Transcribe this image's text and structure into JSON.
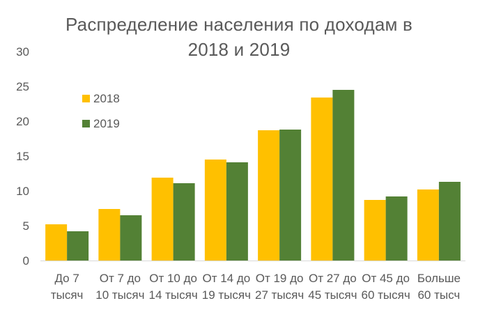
{
  "chart_data": {
    "type": "bar",
    "title": [
      "Распределение населения по доходам в",
      "2018 и 2019"
    ],
    "categories": [
      [
        "До 7",
        "тысяч"
      ],
      [
        "От 7 до",
        "10 тысяч"
      ],
      [
        "От 10 до",
        "14 тысяч"
      ],
      [
        "От 14 до",
        "19 тысяч"
      ],
      [
        "От 19 до",
        "27 тысяч"
      ],
      [
        "От 27 до",
        "45 тысяч"
      ],
      [
        "От 45 до",
        "60 тысяч"
      ],
      [
        "Больше",
        "60 тысч"
      ]
    ],
    "series": [
      {
        "name": "2018",
        "color": "#FFC000",
        "values": [
          5.2,
          7.4,
          11.9,
          14.5,
          18.7,
          23.4,
          8.7,
          10.2
        ]
      },
      {
        "name": "2019",
        "color": "#538135",
        "values": [
          4.2,
          6.5,
          11.1,
          14.1,
          18.8,
          24.5,
          9.2,
          11.3
        ]
      }
    ],
    "ylim": [
      0,
      30
    ],
    "yticks": [
      0,
      5,
      10,
      15,
      20,
      25,
      30
    ],
    "grid": false,
    "legend_position": "top-left"
  }
}
